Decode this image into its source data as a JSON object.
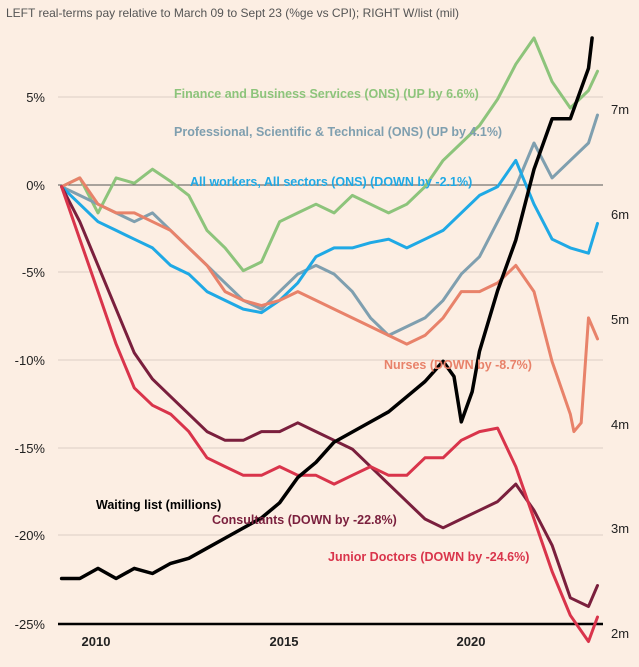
{
  "chart_data": {
    "type": "line",
    "title": "LEFT real-terms pay relative to March 09 to Sept 23 (%ge vs CPI); RIGHT W/list (mil)",
    "x_ticks": [
      "2010",
      "2015",
      "2020"
    ],
    "xlim": [
      2008.9,
      2023.9
    ],
    "y_left": {
      "ticks": [
        "5%",
        "0%",
        "-5%",
        "-10%",
        "-15%",
        "-20%",
        "-25%"
      ],
      "ylim": [
        -25,
        8.5
      ]
    },
    "y_right": {
      "ticks": [
        "7m",
        "6m",
        "5m",
        "4m",
        "3m",
        "2m"
      ],
      "ylim": [
        2,
        7.8
      ]
    },
    "grid": true,
    "series": [
      {
        "name": "Finance and Business Services (ONS) (UP by 6.6%)",
        "axis": "left",
        "color": "#8DC47B",
        "x": [
          2009.0,
          2009.5,
          2010.0,
          2010.5,
          2011.0,
          2011.5,
          2012.0,
          2012.5,
          2013.0,
          2013.5,
          2014.0,
          2014.5,
          2015.0,
          2015.5,
          2016.0,
          2016.5,
          2017.0,
          2017.5,
          2018.0,
          2018.5,
          2019.0,
          2019.5,
          2020.0,
          2020.5,
          2021.0,
          2021.5,
          2022.0,
          2022.5,
          2023.0,
          2023.5,
          2023.75
        ],
        "y": [
          0,
          0.5,
          -1.5,
          0.5,
          0.2,
          1.0,
          0.3,
          -0.5,
          -2.5,
          -3.5,
          -4.8,
          -4.3,
          -2.0,
          -1.5,
          -1.0,
          -1.5,
          -0.5,
          -1.0,
          -1.5,
          -1.0,
          0,
          1.5,
          2.5,
          3.5,
          5.0,
          7.0,
          8.5,
          6.0,
          4.5,
          5.5,
          6.6
        ]
      },
      {
        "name": "Professional, Scientific & Technical (ONS) (UP by 4.1%)",
        "axis": "left",
        "color": "#7F9FAF",
        "x": [
          2009.0,
          2009.5,
          2010.0,
          2010.5,
          2011.0,
          2011.5,
          2012.0,
          2012.5,
          2013.0,
          2013.5,
          2014.0,
          2014.5,
          2015.0,
          2015.5,
          2016.0,
          2016.5,
          2017.0,
          2017.5,
          2018.0,
          2018.5,
          2019.0,
          2019.5,
          2020.0,
          2020.5,
          2021.0,
          2021.5,
          2022.0,
          2022.5,
          2023.0,
          2023.5,
          2023.75
        ],
        "y": [
          0,
          -0.5,
          -1.0,
          -1.5,
          -2.0,
          -1.5,
          -2.5,
          -3.5,
          -4.5,
          -5.5,
          -6.5,
          -7.0,
          -6.0,
          -5.0,
          -4.5,
          -5.0,
          -6.0,
          -7.5,
          -8.5,
          -8.0,
          -7.5,
          -6.5,
          -5.0,
          -4.0,
          -2.0,
          0,
          2.5,
          0.5,
          1.5,
          2.5,
          4.1
        ]
      },
      {
        "name": "All workers, All sectors (ONS) (DOWN by -2.1%)",
        "axis": "left",
        "color": "#1FA9E5",
        "x": [
          2009.0,
          2009.5,
          2010.0,
          2010.5,
          2011.0,
          2011.5,
          2012.0,
          2012.5,
          2013.0,
          2013.5,
          2014.0,
          2014.5,
          2015.0,
          2015.5,
          2016.0,
          2016.5,
          2017.0,
          2017.5,
          2018.0,
          2018.5,
          2019.0,
          2019.5,
          2020.0,
          2020.5,
          2021.0,
          2021.5,
          2022.0,
          2022.5,
          2023.0,
          2023.5,
          2023.75
        ],
        "y": [
          0,
          -1.0,
          -2.0,
          -2.5,
          -3.0,
          -3.5,
          -4.5,
          -5.0,
          -6.0,
          -6.5,
          -7.0,
          -7.2,
          -6.5,
          -5.5,
          -4.0,
          -3.5,
          -3.5,
          -3.2,
          -3.0,
          -3.5,
          -3.0,
          -2.5,
          -1.5,
          -0.5,
          0,
          1.5,
          -1.0,
          -3.0,
          -3.5,
          -3.8,
          -2.1
        ]
      },
      {
        "name": "Nurses (DOWN by -8.7%)",
        "axis": "left",
        "color": "#E8826A",
        "x": [
          2009.0,
          2009.5,
          2010.0,
          2010.5,
          2011.0,
          2011.5,
          2012.0,
          2012.5,
          2013.0,
          2013.5,
          2014.0,
          2014.5,
          2015.0,
          2015.5,
          2016.0,
          2016.5,
          2017.0,
          2017.5,
          2018.0,
          2018.5,
          2019.0,
          2019.5,
          2020.0,
          2020.5,
          2021.0,
          2021.5,
          2022.0,
          2022.5,
          2023.0,
          2023.1,
          2023.3,
          2023.5,
          2023.75
        ],
        "y": [
          0,
          0.5,
          -1.0,
          -1.5,
          -1.5,
          -2.0,
          -2.5,
          -3.5,
          -4.5,
          -6.0,
          -6.5,
          -6.8,
          -6.5,
          -6.0,
          -6.5,
          -7.0,
          -7.5,
          -8.0,
          -8.5,
          -9.0,
          -8.5,
          -7.5,
          -6.0,
          -6.0,
          -5.5,
          -4.5,
          -6.0,
          -10.0,
          -13.0,
          -14.0,
          -13.5,
          -7.5,
          -8.7
        ]
      },
      {
        "name": "Consultants (DOWN by -22.8%)",
        "axis": "left",
        "color": "#7A1F3D",
        "x": [
          2009.0,
          2009.5,
          2010.0,
          2010.5,
          2011.0,
          2011.5,
          2012.0,
          2012.5,
          2013.0,
          2013.5,
          2014.0,
          2014.5,
          2015.0,
          2015.5,
          2016.0,
          2016.5,
          2017.0,
          2017.5,
          2018.0,
          2018.5,
          2019.0,
          2019.5,
          2020.0,
          2020.5,
          2021.0,
          2021.5,
          2022.0,
          2022.5,
          2023.0,
          2023.5,
          2023.75
        ],
        "y": [
          0,
          -2.0,
          -4.5,
          -7.0,
          -9.5,
          -11.0,
          -12.0,
          -13.0,
          -14.0,
          -14.5,
          -14.5,
          -14.0,
          -14.0,
          -13.5,
          -14.0,
          -14.5,
          -15.0,
          -16.0,
          -17.0,
          -18.0,
          -19.0,
          -19.5,
          -19.0,
          -18.5,
          -18.0,
          -17.0,
          -18.5,
          -20.5,
          -23.5,
          -24.0,
          -22.8
        ]
      },
      {
        "name": "Junior Doctors (DOWN by -24.6%)",
        "axis": "left",
        "color": "#D9344B",
        "x": [
          2009.0,
          2009.5,
          2010.0,
          2010.5,
          2011.0,
          2011.5,
          2012.0,
          2012.5,
          2013.0,
          2013.5,
          2014.0,
          2014.5,
          2015.0,
          2015.5,
          2016.0,
          2016.5,
          2017.0,
          2017.5,
          2018.0,
          2018.5,
          2019.0,
          2019.5,
          2020.0,
          2020.5,
          2021.0,
          2021.5,
          2022.0,
          2022.5,
          2023.0,
          2023.5,
          2023.75
        ],
        "y": [
          0,
          -3.0,
          -6.0,
          -9.0,
          -11.5,
          -12.5,
          -13.0,
          -14.0,
          -15.5,
          -16.0,
          -16.5,
          -16.5,
          -16.0,
          -16.5,
          -16.5,
          -17.0,
          -16.5,
          -16.0,
          -16.5,
          -16.5,
          -15.5,
          -15.5,
          -14.5,
          -14.0,
          -13.8,
          -16.0,
          -19.0,
          -22.0,
          -24.5,
          -26.0,
          -24.6
        ]
      },
      {
        "name": "Waiting list (millions)",
        "axis": "right",
        "color": "#000000",
        "x": [
          2009.0,
          2009.5,
          2010.0,
          2010.5,
          2011.0,
          2011.5,
          2012.0,
          2012.5,
          2013.0,
          2013.5,
          2014.0,
          2014.5,
          2015.0,
          2015.5,
          2016.0,
          2016.5,
          2017.0,
          2017.5,
          2018.0,
          2018.5,
          2019.0,
          2019.5,
          2019.8,
          2020.0,
          2020.3,
          2020.5,
          2021.0,
          2021.5,
          2022.0,
          2022.5,
          2023.0,
          2023.5,
          2023.6
        ],
        "y": [
          2.45,
          2.45,
          2.55,
          2.45,
          2.55,
          2.5,
          2.6,
          2.65,
          2.75,
          2.85,
          2.95,
          3.05,
          3.2,
          3.45,
          3.6,
          3.8,
          3.9,
          4.0,
          4.1,
          4.25,
          4.4,
          4.6,
          4.45,
          4.0,
          4.3,
          4.7,
          5.3,
          5.8,
          6.5,
          7.0,
          7.0,
          7.5,
          7.8
        ]
      }
    ],
    "annotations": {
      "finance": "Finance and Business Services (ONS) (UP by 6.6%)",
      "professional": "Professional, Scientific & Technical (ONS) (UP by 4.1%)",
      "all_workers": "All workers, All sectors (ONS) (DOWN by -2.1%)",
      "nurses": "Nurses (DOWN by -8.7%)",
      "waiting_list": "Waiting list (millions)",
      "consultants": "Consultants (DOWN by -22.8%)",
      "junior_doctors": "Junior Doctors (DOWN by -24.6%)"
    }
  }
}
